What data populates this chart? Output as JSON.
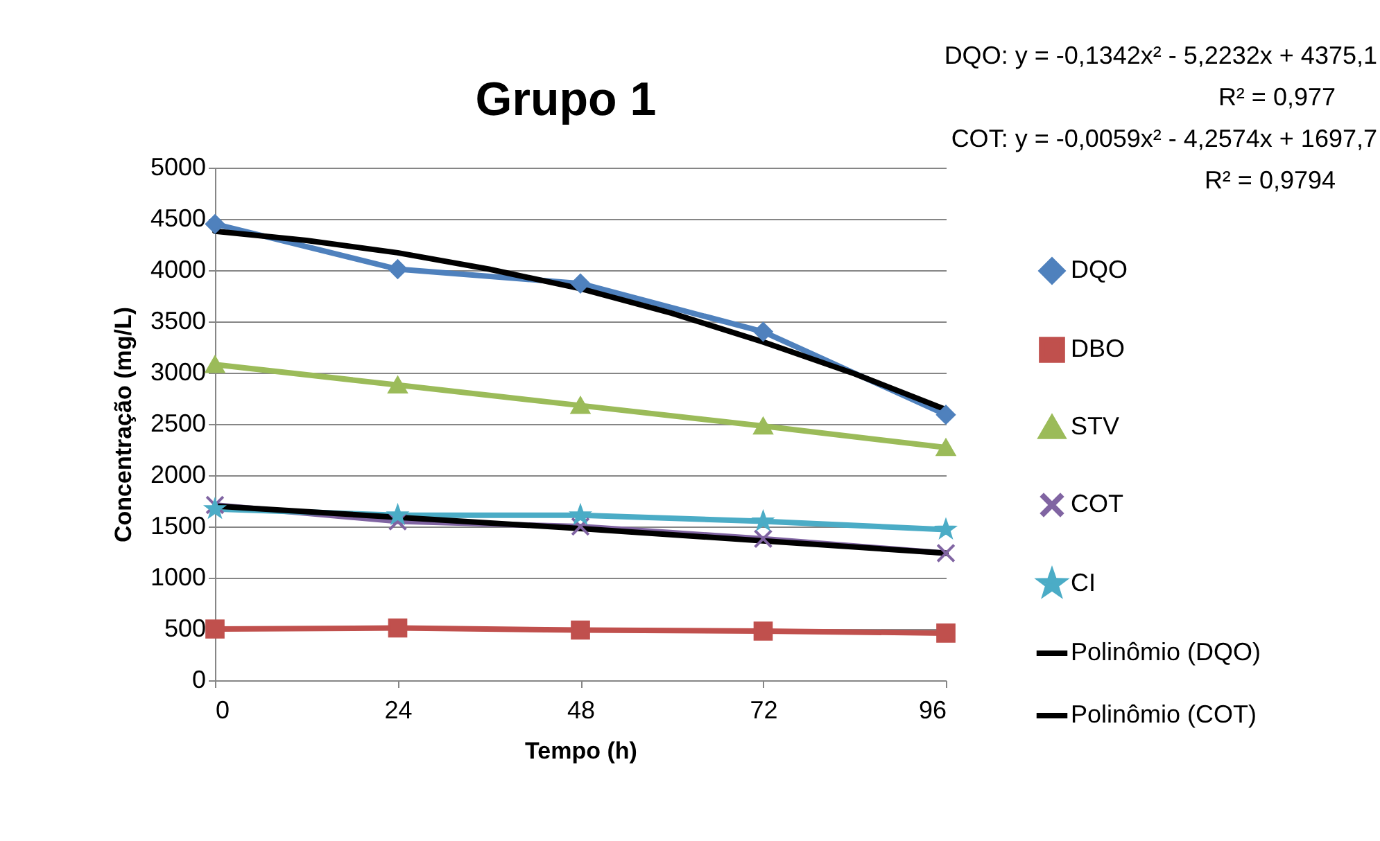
{
  "chart_data": {
    "type": "line",
    "title": "Grupo 1",
    "xlabel": "Tempo (h)",
    "ylabel": "Concentração (mg/L)",
    "xlim": [
      0,
      96
    ],
    "xticks": [
      0,
      24,
      48,
      72,
      96
    ],
    "ylim": [
      0,
      5000
    ],
    "yticks": [
      0,
      500,
      1000,
      1500,
      2000,
      2500,
      3000,
      3500,
      4000,
      4500,
      5000
    ],
    "grid": "y",
    "legend": "right",
    "annotations": [
      "DQO: y = -0,1342x² - 5,2232x + 4375,1",
      "R² = 0,977",
      "COT: y = -0,0059x² - 4,2574x + 1697,7",
      "R² = 0,9794"
    ],
    "x": [
      0,
      24,
      48,
      72,
      96
    ],
    "series": [
      {
        "name": "DQO",
        "color": "#4f81bd",
        "marker": "diamond",
        "values": [
          4450,
          4010,
          3870,
          3400,
          2590
        ]
      },
      {
        "name": "DBO",
        "color": "#c0504d",
        "marker": "square",
        "values": [
          500,
          510,
          490,
          480,
          460
        ]
      },
      {
        "name": "STV",
        "color": "#9bbb59",
        "marker": "triangle",
        "values": [
          3080,
          2880,
          2680,
          2480,
          2270
        ]
      },
      {
        "name": "COT",
        "color": "#8064a2",
        "marker": "cross",
        "values": [
          1710,
          1550,
          1500,
          1380,
          1240
        ]
      },
      {
        "name": "CI",
        "color": "#4bacc6",
        "marker": "star",
        "values": [
          1670,
          1610,
          1610,
          1550,
          1470
        ]
      },
      {
        "name": "Polinômio (DQO)",
        "color": "#000000",
        "marker": "none",
        "x": [
          0,
          12,
          24,
          36,
          48,
          60,
          72,
          84,
          96
        ],
        "values": [
          4380,
          4290,
          4170,
          4010,
          3820,
          3580,
          3300,
          2990,
          2640
        ]
      },
      {
        "name": "Polinômio (COT)",
        "color": "#000000",
        "marker": "none",
        "x": [
          0,
          24,
          48,
          72,
          96
        ],
        "values": [
          1700,
          1590,
          1480,
          1360,
          1240
        ]
      }
    ]
  }
}
